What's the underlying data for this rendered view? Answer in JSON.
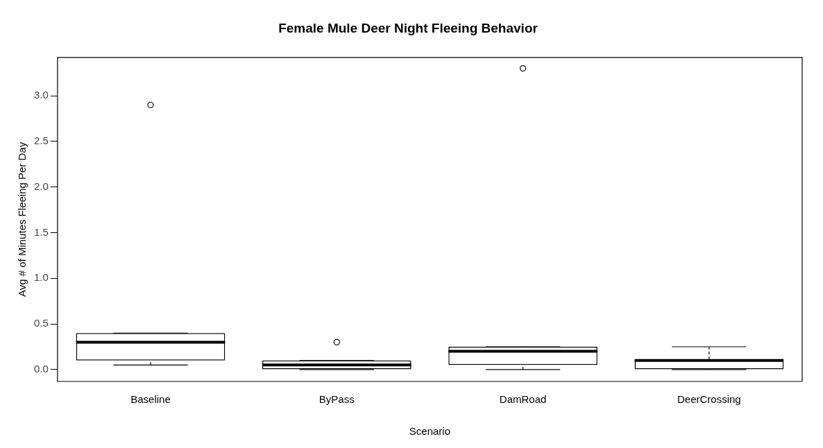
{
  "chart_data": {
    "type": "box",
    "title": "Female Mule Deer Night Fleeing Behavior",
    "xlabel": "Scenario",
    "ylabel": "Avg # of Minutes Fleeing Per Day",
    "categories": [
      "Baseline",
      "ByPass",
      "DamRoad",
      "DeerCrossing"
    ],
    "boxes": [
      {
        "low": 0.05,
        "q1": 0.1,
        "median": 0.3,
        "q3": 0.4,
        "high": 0.4,
        "outliers": [
          2.9
        ]
      },
      {
        "low": 0,
        "q1": 0,
        "median": 0.05,
        "q3": 0.1,
        "high": 0.1,
        "outliers": [
          0.3
        ]
      },
      {
        "low": 0,
        "q1": 0.05,
        "median": 0.2,
        "q3": 0.25,
        "high": 0.25,
        "outliers": [
          3.3
        ]
      },
      {
        "low": 0,
        "q1": 0,
        "median": 0.1,
        "q3": 0.1,
        "high": 0.25
      }
    ],
    "ylim": [
      -0.13,
      3.42
    ],
    "yticks": [
      {
        "value": 0,
        "label": "0.0"
      },
      0.5,
      {
        "value": 1,
        "label": "1.0"
      },
      1.5,
      {
        "value": 2,
        "label": "2.0"
      },
      2.5,
      {
        "value": 3,
        "label": "3.0"
      }
    ],
    "grid": false,
    "legend": false
  }
}
